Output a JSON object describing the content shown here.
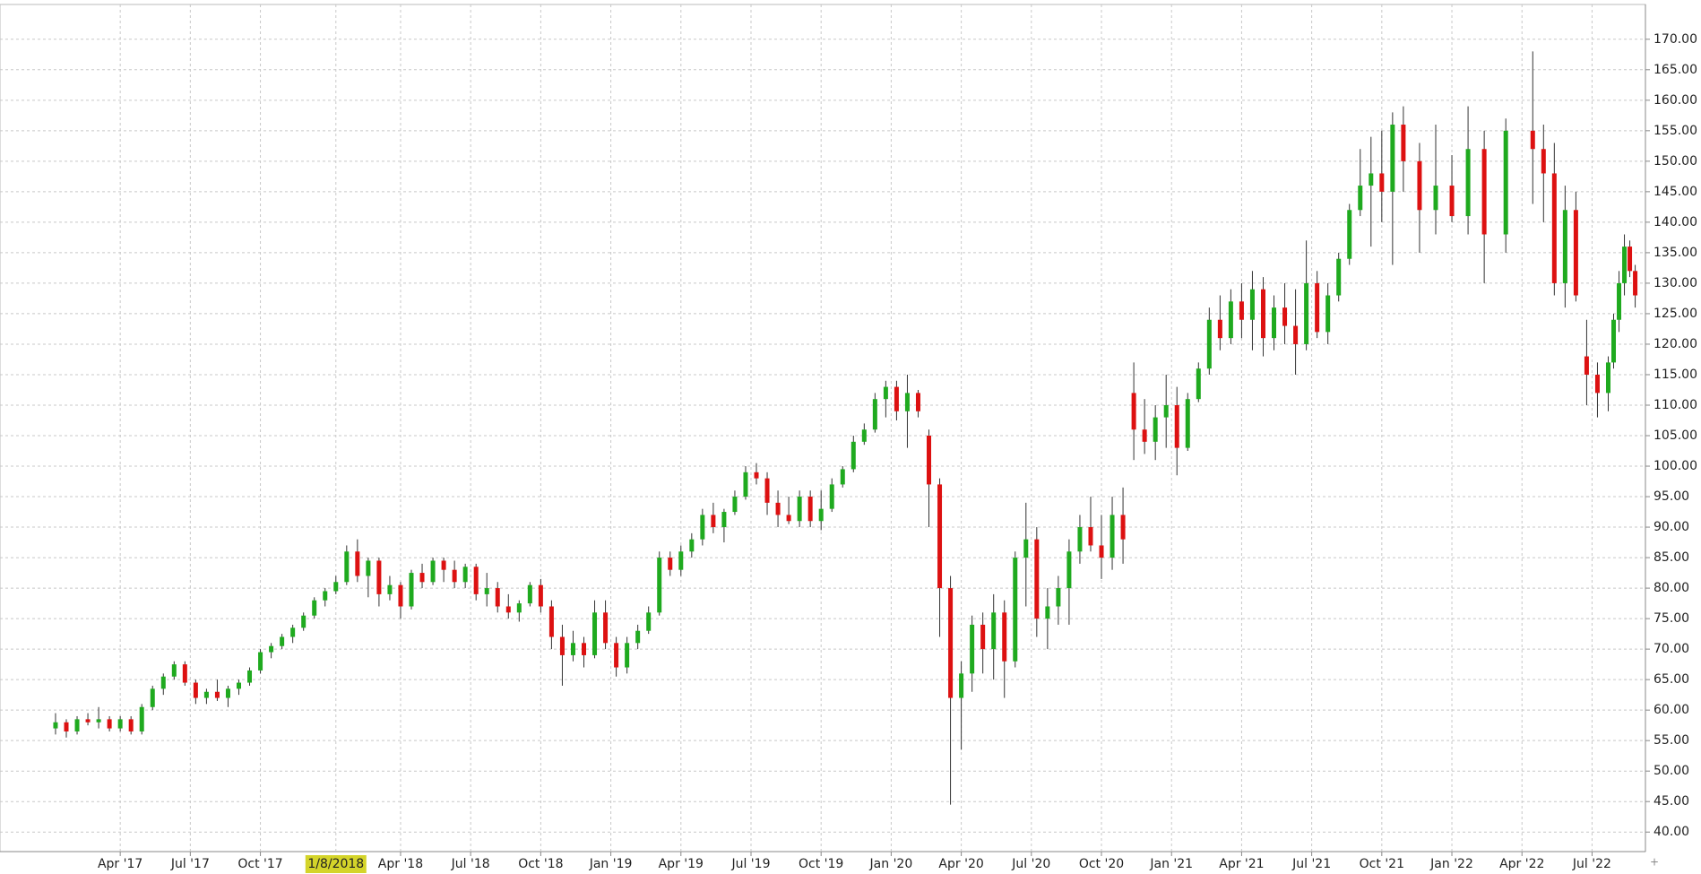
{
  "chart_data": {
    "type": "candlestick",
    "up_color": "#1faa1f",
    "down_color": "#dd1111",
    "wick_color": "#333333",
    "grid": true,
    "xlim": [
      -22.3,
      282.9
    ],
    "ylim": [
      36.8,
      175.7
    ],
    "xticks": [
      {
        "value": 0,
        "label": "Apr '17"
      },
      {
        "value": 13,
        "label": "Jul '17"
      },
      {
        "value": 26,
        "label": "Oct '17"
      },
      {
        "value": 52,
        "label": "Apr '18"
      },
      {
        "value": 65,
        "label": "Jul '18"
      },
      {
        "value": 78,
        "label": "Oct '18"
      },
      {
        "value": 91,
        "label": "Jan '19"
      },
      {
        "value": 104,
        "label": "Apr '19"
      },
      {
        "value": 117,
        "label": "Jul '19"
      },
      {
        "value": 130,
        "label": "Oct '19"
      },
      {
        "value": 143,
        "label": "Jan '20"
      },
      {
        "value": 156,
        "label": "Apr '20"
      },
      {
        "value": 169,
        "label": "Jul '20"
      },
      {
        "value": 182,
        "label": "Oct '20"
      },
      {
        "value": 195,
        "label": "Jan '21"
      },
      {
        "value": 208,
        "label": "Apr '21"
      },
      {
        "value": 221,
        "label": "Jul '21"
      },
      {
        "value": 234,
        "label": "Oct '21"
      },
      {
        "value": 247,
        "label": "Jan '22"
      },
      {
        "value": 260,
        "label": "Apr '22"
      },
      {
        "value": 273,
        "label": "Jul '22"
      }
    ],
    "crosshair_label": {
      "value": 40,
      "label": "1/8/2018"
    },
    "yticks": [
      {
        "value": 40,
        "label": "40.00"
      },
      {
        "value": 45,
        "label": "45.00"
      },
      {
        "value": 50,
        "label": "50.00"
      },
      {
        "value": 55,
        "label": "55.00"
      },
      {
        "value": 60,
        "label": "60.00"
      },
      {
        "value": 65,
        "label": "65.00"
      },
      {
        "value": 70,
        "label": "70.00"
      },
      {
        "value": 75,
        "label": "75.00"
      },
      {
        "value": 80,
        "label": "80.00"
      },
      {
        "value": 85,
        "label": "85.00"
      },
      {
        "value": 90,
        "label": "90.00"
      },
      {
        "value": 95,
        "label": "95.00"
      },
      {
        "value": 100,
        "label": "100.00"
      },
      {
        "value": 105,
        "label": "105.00"
      },
      {
        "value": 110,
        "label": "110.00"
      },
      {
        "value": 115,
        "label": "115.00"
      },
      {
        "value": 120,
        "label": "120.00"
      },
      {
        "value": 125,
        "label": "125.00"
      },
      {
        "value": 130,
        "label": "130.00"
      },
      {
        "value": 135,
        "label": "135.00"
      },
      {
        "value": 140,
        "label": "140.00"
      },
      {
        "value": 145,
        "label": "145.00"
      },
      {
        "value": 150,
        "label": "150.00"
      },
      {
        "value": 155,
        "label": "155.00"
      },
      {
        "value": 160,
        "label": "160.00"
      },
      {
        "value": 165,
        "label": "165.00"
      },
      {
        "value": 170,
        "label": "170.00"
      }
    ],
    "x": [
      -12,
      -10,
      -8,
      -6,
      -4,
      -2,
      0,
      2,
      4,
      6,
      8,
      10,
      12,
      14,
      16,
      18,
      20,
      22,
      24,
      26,
      28,
      30,
      32,
      34,
      36,
      38,
      40,
      42,
      44,
      46,
      48,
      50,
      52,
      54,
      56,
      58,
      60,
      62,
      64,
      66,
      68,
      70,
      72,
      74,
      76,
      78,
      80,
      82,
      84,
      86,
      88,
      90,
      92,
      94,
      96,
      98,
      100,
      102,
      104,
      106,
      108,
      110,
      112,
      114,
      116,
      118,
      120,
      122,
      124,
      126,
      128,
      130,
      132,
      134,
      136,
      138,
      140,
      142,
      144,
      146,
      148,
      150,
      152,
      154,
      156,
      158,
      160,
      162,
      164,
      166,
      168,
      170,
      172,
      174,
      176,
      178,
      180,
      182,
      184,
      186,
      188,
      190,
      192,
      194,
      196,
      198,
      200,
      202,
      204,
      206,
      208,
      210,
      212,
      214,
      216,
      218,
      220,
      222,
      224,
      226,
      228,
      230,
      232,
      234,
      236,
      238,
      241,
      244,
      247,
      250,
      253,
      257,
      262,
      264,
      266,
      268,
      270,
      272,
      274,
      276,
      277,
      278,
      279,
      280,
      281
    ],
    "open": [
      57,
      58,
      56.5,
      58.5,
      58,
      58.5,
      57,
      58.5,
      56.5,
      60.5,
      63.5,
      65.5,
      67.5,
      64.5,
      62,
      63,
      62,
      63.5,
      64.5,
      66.5,
      69.5,
      70.5,
      72,
      73.5,
      75.5,
      78,
      79.5,
      81,
      86,
      82,
      84.5,
      79,
      80.5,
      77,
      82.5,
      81,
      84.5,
      83,
      81,
      83.5,
      79,
      80,
      77,
      76,
      77.5,
      80.5,
      77,
      72,
      69,
      71,
      69,
      76,
      71,
      67,
      71,
      73,
      76,
      85,
      83,
      86,
      88,
      92,
      90,
      92.5,
      95,
      99,
      98,
      94,
      92,
      91,
      95,
      91,
      93,
      97,
      99.5,
      104,
      106,
      111,
      113,
      109,
      112,
      105,
      97,
      80,
      62,
      66,
      74,
      70,
      76,
      68,
      85,
      88,
      75,
      77,
      80,
      86,
      90,
      87,
      85,
      92,
      112,
      106,
      104,
      108,
      110,
      103,
      111,
      116,
      124,
      121,
      127,
      124,
      129,
      121,
      126,
      123,
      120,
      130,
      122,
      128,
      134,
      142,
      146,
      148,
      145,
      156,
      150,
      142,
      146,
      141,
      152,
      138,
      155,
      152,
      148,
      130,
      142,
      118,
      115,
      112,
      117,
      124,
      130,
      136,
      132
    ],
    "high": [
      59.5,
      58.5,
      59,
      59.5,
      60.5,
      59,
      59,
      59,
      61,
      64,
      66,
      68,
      68,
      65,
      63.5,
      65,
      64,
      65,
      67,
      70,
      71,
      72.5,
      74,
      76,
      78.5,
      80,
      82,
      87,
      88,
      85,
      85,
      82,
      81,
      83,
      84,
      85,
      85,
      84.5,
      84,
      84,
      82.5,
      81,
      79,
      78,
      81,
      81.5,
      78,
      74,
      73,
      72,
      78,
      78,
      72,
      72,
      74,
      77,
      86,
      86,
      87,
      89,
      93,
      94,
      93,
      96,
      100,
      100.5,
      99,
      96,
      95,
      96,
      96,
      96,
      98,
      100,
      105,
      107,
      112,
      114,
      114,
      115,
      112.5,
      106,
      98,
      82,
      68,
      75.5,
      76,
      79,
      78,
      86,
      94,
      90,
      80,
      82,
      88,
      92,
      95,
      92,
      95,
      96.5,
      117,
      111,
      110,
      115,
      113,
      112,
      117,
      126,
      128,
      129,
      130,
      132,
      131,
      128,
      130,
      129,
      137,
      132,
      130,
      135,
      143,
      152,
      154,
      155,
      158,
      159,
      153,
      156,
      151,
      159,
      155,
      157,
      168,
      156,
      153,
      146,
      145,
      124,
      117,
      118,
      125,
      132,
      138,
      137,
      133
    ],
    "low": [
      56,
      55.5,
      56,
      57.5,
      57,
      56.5,
      56.5,
      56,
      56,
      60,
      62.5,
      65,
      64,
      61,
      61,
      61.5,
      60.5,
      62.5,
      64,
      66,
      68.5,
      70,
      71,
      73,
      75,
      77,
      79,
      80.5,
      81,
      78.5,
      77,
      78,
      75,
      76.5,
      80,
      80.5,
      81,
      80,
      80,
      78,
      77,
      76,
      75,
      74.5,
      77,
      76,
      70,
      64,
      68,
      67,
      68.5,
      70,
      65.5,
      66,
      70,
      72.5,
      75.5,
      82,
      82,
      85,
      87,
      89,
      87.5,
      92,
      94.5,
      97,
      92,
      90,
      90.5,
      90,
      90,
      89.5,
      92.5,
      96.5,
      99,
      103.5,
      105.5,
      108,
      107.5,
      103,
      108,
      90,
      72,
      44.5,
      53.5,
      63,
      66,
      65,
      62,
      67,
      77,
      72,
      70,
      74,
      74,
      84,
      86,
      81.5,
      83,
      84,
      101,
      102,
      101,
      103,
      98.5,
      102.5,
      110.5,
      115,
      119,
      120,
      121,
      119,
      118,
      119,
      120,
      115,
      119,
      121,
      120,
      127,
      133,
      141,
      136,
      140,
      133,
      145,
      135,
      138,
      140,
      138,
      130,
      135,
      143,
      140,
      128,
      126,
      127,
      110,
      108,
      109,
      116,
      122,
      128,
      131,
      126
    ],
    "close": [
      58,
      56.5,
      58.5,
      58,
      58.5,
      57,
      58.5,
      56.5,
      60.5,
      63.5,
      65.5,
      67.5,
      64.5,
      62,
      63,
      62,
      63.5,
      64.5,
      66.5,
      69.5,
      70.5,
      72,
      73.5,
      75.5,
      78,
      79.5,
      81,
      86,
      82,
      84.5,
      79,
      80.5,
      77,
      82.5,
      81,
      84.5,
      83,
      81,
      83.5,
      79,
      80,
      77,
      76,
      77.5,
      80.5,
      77,
      72,
      69,
      71,
      69,
      76,
      71,
      67,
      71,
      73,
      76,
      85,
      83,
      86,
      88,
      92,
      90,
      92.5,
      95,
      99,
      98,
      94,
      92,
      91,
      95,
      91,
      93,
      97,
      99.5,
      104,
      106,
      111,
      113,
      109,
      112,
      109,
      97,
      80,
      62,
      66,
      74,
      70,
      76,
      68,
      85,
      88,
      75,
      77,
      80,
      86,
      90,
      87,
      85,
      92,
      88,
      106,
      104,
      108,
      110,
      103,
      111,
      116,
      124,
      121,
      127,
      124,
      129,
      121,
      126,
      123,
      120,
      130,
      122,
      128,
      134,
      142,
      146,
      148,
      145,
      156,
      150,
      142,
      146,
      141,
      152,
      138,
      155,
      152,
      148,
      130,
      142,
      128,
      115,
      112,
      117,
      124,
      130,
      136,
      132,
      128
    ]
  }
}
